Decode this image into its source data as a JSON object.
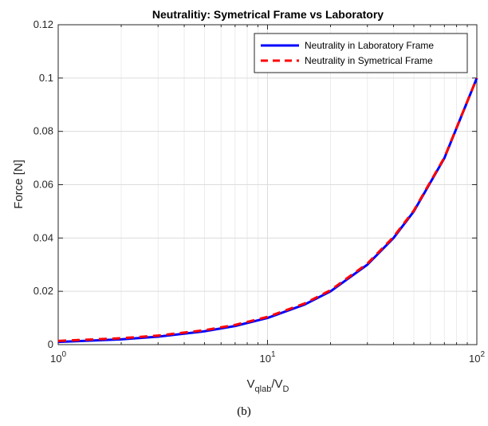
{
  "chart_data": {
    "type": "line",
    "title": "Neutralitiy: Symetrical Frame vs Laboratory",
    "xlabel": {
      "base": "V",
      "sub1": "qlab",
      "sep": "/V",
      "sub2": "D"
    },
    "ylabel": "Force [N]",
    "xscale": "log",
    "xlim": [
      1,
      100
    ],
    "ylim": [
      0,
      0.12
    ],
    "grid": true,
    "legend_position": "top-right",
    "x_ticks": [
      {
        "value": 1,
        "base": "10",
        "exp": "0"
      },
      {
        "value": 10,
        "base": "10",
        "exp": "1"
      },
      {
        "value": 100,
        "base": "10",
        "exp": "2"
      }
    ],
    "y_ticks": [
      {
        "value": 0,
        "label": "0"
      },
      {
        "value": 0.02,
        "label": "0.02"
      },
      {
        "value": 0.04,
        "label": "0.04"
      },
      {
        "value": 0.06,
        "label": "0.06"
      },
      {
        "value": 0.08,
        "label": "0.08"
      },
      {
        "value": 0.1,
        "label": "0.1"
      },
      {
        "value": 0.12,
        "label": "0.12"
      }
    ],
    "series": [
      {
        "name": "Neutrality in Laboratory Frame",
        "color": "#0000ff",
        "style": "solid",
        "x": [
          1,
          2,
          3,
          5,
          7,
          10,
          15,
          20,
          30,
          40,
          50,
          70,
          100
        ],
        "y": [
          0.001,
          0.002,
          0.003,
          0.005,
          0.007,
          0.01,
          0.015,
          0.02,
          0.03,
          0.04,
          0.05,
          0.07,
          0.1
        ]
      },
      {
        "name": "Neutrality in Symetrical Frame",
        "color": "#ff0000",
        "style": "dashed",
        "x": [
          1,
          2,
          3,
          5,
          7,
          10,
          15,
          20,
          30,
          40,
          50,
          70,
          100
        ],
        "y": [
          0.0014,
          0.0024,
          0.0034,
          0.0054,
          0.0074,
          0.0104,
          0.0154,
          0.0204,
          0.0304,
          0.0404,
          0.0503,
          0.0702,
          0.1
        ]
      }
    ]
  },
  "caption": "(b)"
}
